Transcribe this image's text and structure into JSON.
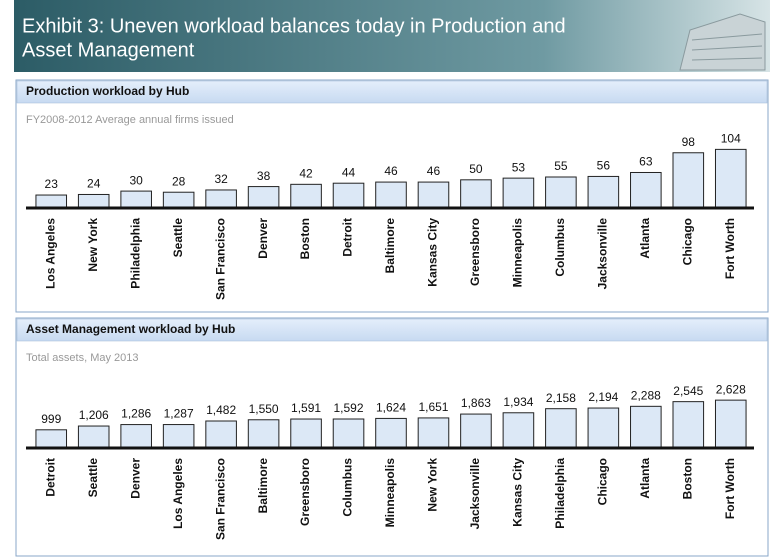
{
  "title": "Exhibit 3: Uneven workload balances today in Production and Asset Management",
  "chart_data": [
    {
      "type": "bar",
      "title": "Production workload by Hub",
      "subtitle": "FY2008-2012 Average annual firms issued",
      "categories": [
        "Los Angeles",
        "New York",
        "Philadelphia",
        "Seattle",
        "San Francisco",
        "Denver",
        "Boston",
        "Detroit",
        "Baltimore",
        "Kansas City",
        "Greensboro",
        "Minneapolis",
        "Columbus",
        "Jacksonville",
        "Atlanta",
        "Chicago",
        "Fort Worth"
      ],
      "values": [
        23,
        24,
        30,
        28,
        32,
        38,
        42,
        44,
        46,
        46,
        50,
        53,
        55,
        56,
        63,
        98,
        104
      ],
      "color": "#dce8f6",
      "ylim": [
        0,
        110
      ]
    },
    {
      "type": "bar",
      "title": "Asset Management workload by Hub",
      "subtitle": "Total assets, May 2013",
      "categories": [
        "Detroit",
        "Seattle",
        "Denver",
        "Los Angeles",
        "San Francisco",
        "Baltimore",
        "Greensboro",
        "Columbus",
        "Minneapolis",
        "New York",
        "Jacksonville",
        "Kansas City",
        "Philadelphia",
        "Chicago",
        "Atlanta",
        "Boston",
        "Fort Worth"
      ],
      "values": [
        999,
        1206,
        1286,
        1287,
        1482,
        1550,
        1591,
        1592,
        1624,
        1651,
        1863,
        1934,
        2158,
        2194,
        2288,
        2545,
        2628
      ],
      "value_labels": [
        "999",
        "1,206",
        "1,286",
        "1,287",
        "1,482",
        "1,550",
        "1,591",
        "1,592",
        "1,624",
        "1,651",
        "1,863",
        "1,934",
        "2,158",
        "2,194",
        "2,288",
        "2,545",
        "2,628"
      ],
      "color": "#dce8f6",
      "ylim": [
        0,
        2800
      ]
    }
  ]
}
